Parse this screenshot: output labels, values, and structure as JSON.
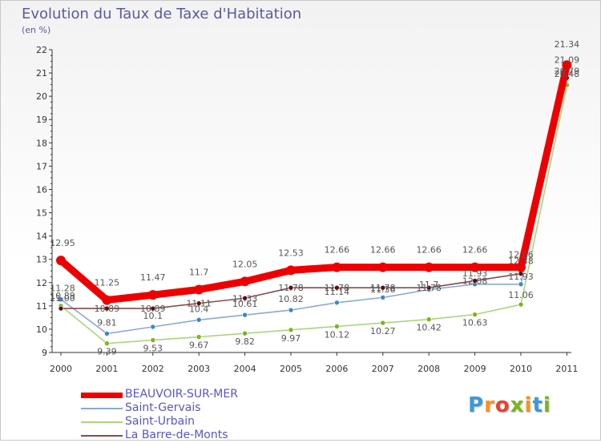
{
  "title": "Evolution du Taux de Taxe d'Habitation",
  "subtitle": "(en %)",
  "logo": {
    "letters": [
      "P",
      "r",
      "o",
      "x",
      "i",
      "t",
      "i"
    ],
    "colors": [
      "#3a9ad9",
      "#f7941d",
      "#e9422e",
      "#7ab51d",
      "#f7941d",
      "#3a9ad9",
      "#7ab51d"
    ]
  },
  "chart_data": {
    "type": "line",
    "title": "Evolution du Taux de Taxe d'Habitation",
    "ylabel": "(en %)",
    "xlabel": "",
    "x": [
      "2000",
      "2001",
      "2002",
      "2003",
      "2004",
      "2005",
      "2006",
      "2007",
      "2008",
      "2009",
      "2010",
      "2011"
    ],
    "ylim": [
      9,
      22
    ],
    "yticks": [
      "9",
      "10",
      "11",
      "12",
      "13",
      "14",
      "15",
      "16",
      "17",
      "18",
      "19",
      "20",
      "21",
      "22"
    ],
    "grid": false,
    "legend": "bottom-left",
    "series": [
      {
        "name": "Saint-Urbain",
        "color": "#a8d878",
        "marker": "#7ab51d",
        "values": [
          11.0,
          9.39,
          9.53,
          9.67,
          9.82,
          9.97,
          10.12,
          10.27,
          10.42,
          10.63,
          11.06,
          20.48
        ],
        "labels": [
          "11.00",
          "9.39",
          "9.53",
          "9.67",
          "9.82",
          "9.97",
          "10.12",
          "10.27",
          "10.42",
          "10.63",
          "11.06",
          "20.48"
        ]
      },
      {
        "name": "Saint-Gervais",
        "color": "#88aad8",
        "marker": "#3a86cf",
        "values": [
          11.28,
          9.81,
          10.1,
          10.4,
          10.61,
          10.82,
          11.14,
          11.36,
          11.7,
          11.93,
          11.93,
          21.09
        ],
        "labels": [
          "11.28",
          "9.81",
          "10.1",
          "10.4",
          "10.61",
          "10.82",
          "11.14",
          "",
          "",
          "11.93",
          "11.93",
          "21.09"
        ]
      },
      {
        "name": "La Barre-de-Monts",
        "color": "#8a4a4a",
        "marker": "#5a1010",
        "values": [
          10.89,
          10.89,
          10.89,
          11.11,
          11.33,
          11.78,
          11.78,
          11.78,
          11.78,
          12.08,
          12.38,
          20.79
        ],
        "labels": [
          "10.89",
          "10.89",
          "10.89",
          "11.11",
          "11.33",
          "11.78",
          "11.78",
          "11.78",
          "11.78",
          "12.08",
          "12.38",
          ""
        ]
      },
      {
        "name": "BEAUVOIR-SUR-MER",
        "color": "#ee0000",
        "marker": "#ee0000",
        "values": [
          12.95,
          11.25,
          11.47,
          11.7,
          12.05,
          12.53,
          12.66,
          12.66,
          12.66,
          12.66,
          12.66,
          21.34
        ],
        "labels": [
          "12.95",
          "11.25",
          "11.47",
          "11.7",
          "12.05",
          "12.53",
          "12.66",
          "12.66",
          "12.66",
          "12.66",
          "12.66",
          "21.34"
        ]
      }
    ],
    "legend_entries": [
      {
        "name": "BEAUVOIR-SUR-MER",
        "color": "#ee0000",
        "thickness": 7
      },
      {
        "name": "Saint-Gervais",
        "color": "#88aad8",
        "thickness": 2
      },
      {
        "name": "Saint-Urbain",
        "color": "#a8d878",
        "thickness": 2
      },
      {
        "name": "La Barre-de-Monts",
        "color": "#8a4a4a",
        "thickness": 2
      }
    ],
    "extra_labels": [
      "11.36",
      "11.7",
      "20.79"
    ]
  }
}
